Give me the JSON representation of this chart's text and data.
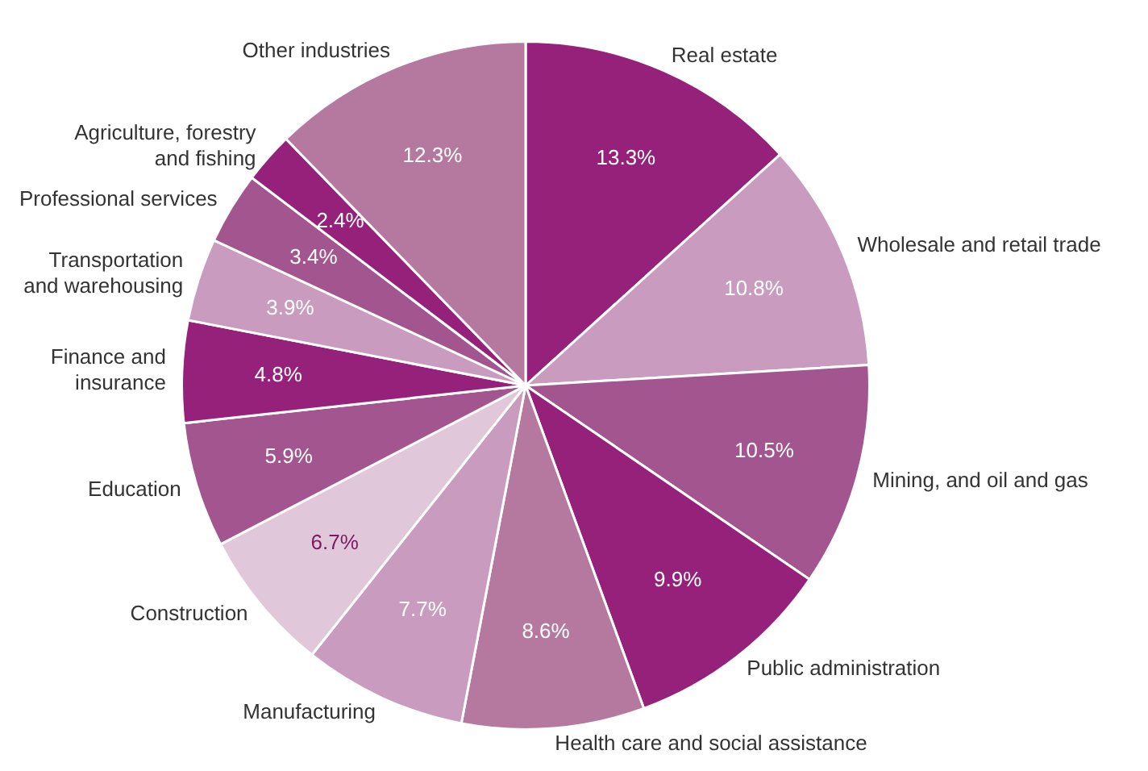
{
  "chart_data": {
    "type": "pie",
    "categories": [
      "Real estate",
      "Wholesale and retail trade",
      "Mining, and oil and gas",
      "Public administration",
      "Health care and social assistance",
      "Manufacturing",
      "Construction",
      "Education",
      "Finance and\ninsurance",
      "Transportation\nand warehousing",
      "Professional services",
      "Agriculture, forestry\nand fishing",
      "Other industries"
    ],
    "values": [
      13.3,
      10.8,
      10.5,
      9.9,
      8.6,
      7.7,
      6.7,
      5.9,
      4.8,
      3.9,
      3.4,
      2.4,
      12.3
    ],
    "colors": [
      "#96217a",
      "#c99cbf",
      "#a3558f",
      "#96217a",
      "#b5799f",
      "#c99cbf",
      "#e0c8da",
      "#a3558f",
      "#96217a",
      "#c99cbf",
      "#a3558f",
      "#96217a",
      "#b5799f"
    ],
    "value_labels": [
      "13.3%",
      "10.8%",
      "10.5%",
      "9.9%",
      "8.6%",
      "7.7%",
      "6.7%",
      "5.9%",
      "4.8%",
      "3.9%",
      "3.4%",
      "2.4%",
      "12.3%"
    ]
  }
}
